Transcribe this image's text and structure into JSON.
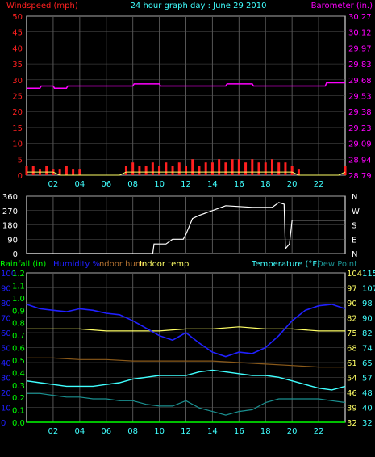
{
  "header": {
    "windspeed_label": "Windspeed (mph)",
    "title": "24 hour graph day : June 29 2010",
    "barometer_label": "Barometer (in.)"
  },
  "bottom_header": {
    "rainfall_label": "Rainfall (in)",
    "humidity_label": "Humidity %",
    "indoor_hum_label": "Indoor hum",
    "indoor_temp_label": "Indoor temp",
    "temperature_label": "Temperature (°F)",
    "dewpoint_label": "Dew Point"
  },
  "colors": {
    "windspeed": "#ff2020",
    "gust": "#ff2020",
    "barometer": "#ff00ff",
    "direction": "#ffffff",
    "humidity": "#2020ff",
    "indoor_hum": "#8b5a1a",
    "indoor_temp": "#ffff66",
    "temperature": "#40ffff",
    "dewpoint": "#1a9090",
    "rainfall": "#00ff00",
    "grid": "#555555",
    "frame": "#ffffff"
  },
  "x_ticks": [
    "02",
    "04",
    "06",
    "08",
    "10",
    "12",
    "14",
    "16",
    "18",
    "20",
    "22"
  ],
  "chart_data": [
    {
      "type": "line",
      "title": "24 hour graph day : June 29 2010",
      "series": [
        {
          "name": "Windspeed (mph)",
          "x": [
            0.0,
            0.5,
            1.0,
            1.5,
            2.0,
            2.5,
            3.0,
            3.5,
            4.0,
            4.5,
            5.0,
            5.5,
            6.0,
            6.5,
            7.0,
            7.5,
            8.0,
            8.5,
            9.0,
            9.5,
            10.0,
            10.5,
            11.0,
            11.5,
            12.0,
            12.5,
            13.0,
            13.5,
            14.0,
            14.5,
            15.0,
            15.5,
            16.0,
            16.5,
            17.0,
            17.5,
            18.0,
            18.5,
            19.0,
            19.5,
            20.0,
            20.5,
            21.0,
            21.5,
            22.0,
            22.5,
            23.0,
            23.5,
            24.0
          ],
          "y": [
            1,
            1,
            1,
            1,
            1,
            0,
            0,
            0,
            0,
            0,
            0,
            0,
            0,
            0,
            0,
            1,
            1,
            1,
            1,
            1,
            1,
            1,
            1,
            1,
            1,
            1,
            1,
            1,
            1,
            1,
            1,
            1,
            1,
            1,
            1,
            1,
            1,
            1,
            1,
            1,
            1,
            0,
            0,
            0,
            0,
            0,
            0,
            0,
            1
          ]
        },
        {
          "name": "Gust (mph)",
          "x": [
            0.0,
            0.5,
            1.0,
            1.5,
            2.0,
            2.5,
            3.0,
            3.5,
            4.0,
            4.5,
            5.0,
            5.5,
            6.0,
            6.5,
            7.0,
            7.5,
            8.0,
            8.5,
            9.0,
            9.5,
            10.0,
            10.5,
            11.0,
            11.5,
            12.0,
            12.5,
            13.0,
            13.5,
            14.0,
            14.5,
            15.0,
            15.5,
            16.0,
            16.5,
            17.0,
            17.5,
            18.0,
            18.5,
            19.0,
            19.5,
            20.0,
            20.5,
            21.0,
            21.5,
            22.0,
            22.5,
            23.0,
            23.5,
            24.0
          ],
          "y": [
            3,
            3,
            2,
            3,
            2,
            2,
            3,
            2,
            2,
            0,
            0,
            0,
            0,
            0,
            0,
            3,
            4,
            3,
            3,
            4,
            3,
            4,
            3,
            4,
            3,
            5,
            3,
            4,
            4,
            5,
            4,
            5,
            5,
            4,
            5,
            4,
            4,
            5,
            4,
            4,
            3,
            2,
            0,
            0,
            0,
            0,
            0,
            0,
            3
          ]
        },
        {
          "name": "Barometer (in.)",
          "x": [
            0,
            1.0,
            1.1,
            2.0,
            2.1,
            3.0,
            3.1,
            8.0,
            8.1,
            10.0,
            10.1,
            15.0,
            15.1,
            17.0,
            17.1,
            22.5,
            22.6,
            24
          ],
          "y": [
            29.6,
            29.6,
            29.62,
            29.62,
            29.6,
            29.6,
            29.62,
            29.62,
            29.64,
            29.64,
            29.62,
            29.62,
            29.64,
            29.64,
            29.62,
            29.62,
            29.65,
            29.65
          ]
        }
      ],
      "y_left": {
        "label": "Windspeed (mph)",
        "ticks": [
          0,
          5,
          10,
          15,
          20,
          25,
          30,
          35,
          40,
          45,
          50
        ],
        "range": [
          0,
          50
        ]
      },
      "y_right": {
        "label": "Barometer (in.)",
        "ticks": [
          "28.79",
          "28.94",
          "29.09",
          "29.23",
          "29.38",
          "29.53",
          "29.68",
          "29.83",
          "29.97",
          "30.12",
          "30.27"
        ],
        "range": [
          28.79,
          30.27
        ]
      },
      "x_range": [
        0,
        24
      ],
      "grid": true
    },
    {
      "type": "line",
      "series": [
        {
          "name": "Wind direction",
          "x": [
            0,
            9.5,
            9.6,
            10.5,
            11.0,
            11.8,
            12.0,
            12.5,
            13.0,
            15.0,
            17.0,
            18.5,
            19.0,
            19.4,
            19.5,
            19.8,
            20.0,
            24
          ],
          "y": [
            0,
            0,
            60,
            60,
            90,
            90,
            120,
            220,
            240,
            300,
            290,
            290,
            320,
            310,
            30,
            60,
            210,
            210
          ]
        }
      ],
      "y_left": {
        "ticks": [
          "0",
          "90",
          "180",
          "270",
          "360"
        ],
        "range": [
          0,
          360
        ]
      },
      "y_right_labels": [
        "N",
        "W",
        "S",
        "E",
        "N"
      ],
      "x_range": [
        0,
        24
      ],
      "grid": true
    },
    {
      "type": "line",
      "series": [
        {
          "name": "Humidity %",
          "x": [
            0,
            1,
            2,
            3,
            4,
            5,
            6,
            7,
            8,
            9,
            10,
            11,
            12,
            13,
            14,
            15,
            16,
            17,
            18,
            19,
            20,
            21,
            22,
            23,
            24
          ],
          "y": [
            79,
            76,
            75,
            74,
            76,
            75,
            73,
            72,
            68,
            63,
            58,
            55,
            60,
            53,
            47,
            44,
            47,
            46,
            50,
            58,
            68,
            75,
            78,
            79,
            76
          ]
        },
        {
          "name": "Indoor hum",
          "x": [
            0,
            2,
            4,
            6,
            8,
            10,
            12,
            14,
            16,
            18,
            20,
            22,
            24
          ],
          "y": [
            43,
            43,
            42,
            42,
            41,
            41,
            41,
            41,
            40,
            39,
            38,
            37,
            37
          ]
        },
        {
          "name": "Indoor temp",
          "x": [
            0,
            2,
            4,
            6,
            8,
            10,
            12,
            14,
            16,
            18,
            20,
            22,
            24
          ],
          "y": [
            77,
            77,
            77,
            76,
            76,
            76,
            77,
            77,
            78,
            77,
            77,
            76,
            76
          ]
        },
        {
          "name": "Temperature (°F)",
          "x": [
            0,
            1,
            2,
            3,
            4,
            5,
            6,
            7,
            8,
            9,
            10,
            11,
            12,
            13,
            14,
            15,
            16,
            17,
            18,
            19,
            20,
            21,
            22,
            23,
            24
          ],
          "y": [
            55,
            54,
            53,
            52,
            52,
            52,
            53,
            54,
            56,
            57,
            58,
            58,
            58,
            60,
            61,
            60,
            59,
            58,
            58,
            57,
            55,
            53,
            51,
            50,
            52
          ]
        },
        {
          "name": "Dew Point",
          "x": [
            0,
            1,
            2,
            3,
            4,
            5,
            6,
            7,
            8,
            9,
            10,
            11,
            12,
            13,
            14,
            15,
            16,
            17,
            18,
            19,
            20,
            21,
            22,
            23,
            24
          ],
          "y": [
            48,
            48,
            47,
            46,
            46,
            45,
            45,
            44,
            44,
            42,
            41,
            41,
            44,
            40,
            38,
            36,
            38,
            39,
            43,
            45,
            45,
            45,
            45,
            44,
            43
          ]
        },
        {
          "name": "Rainfall (in)",
          "x": [
            0,
            24
          ],
          "y": [
            0,
            0
          ]
        }
      ],
      "y_rain": {
        "label": "Rainfall (in)",
        "ticks": [
          "0.0",
          "0.1",
          "0.2",
          "0.3",
          "0.4",
          "0.5",
          "0.6",
          "0.7",
          "0.8",
          "0.9",
          "1.0",
          "1.1",
          "1.2"
        ]
      },
      "y_hum": {
        "label": "Humidity %",
        "ticks": [
          "0",
          "10",
          "20",
          "30",
          "40",
          "50",
          "60",
          "70",
          "80",
          "90",
          "100"
        ],
        "range": [
          0,
          100
        ]
      },
      "y_indoor": {
        "label": "Indoor temp",
        "ticks": [
          "32",
          "39",
          "46",
          "54",
          "61",
          "68",
          "75",
          "82",
          "90",
          "97",
          "104"
        ],
        "range": [
          32,
          104
        ]
      },
      "y_temp": {
        "label": "Temperature (°F)",
        "ticks": [
          "32",
          "40",
          "48",
          "57",
          "65",
          "74",
          "82",
          "90",
          "98",
          "107",
          "115"
        ],
        "range": [
          32,
          115
        ]
      },
      "x_range": [
        0,
        24
      ],
      "grid": true
    }
  ]
}
